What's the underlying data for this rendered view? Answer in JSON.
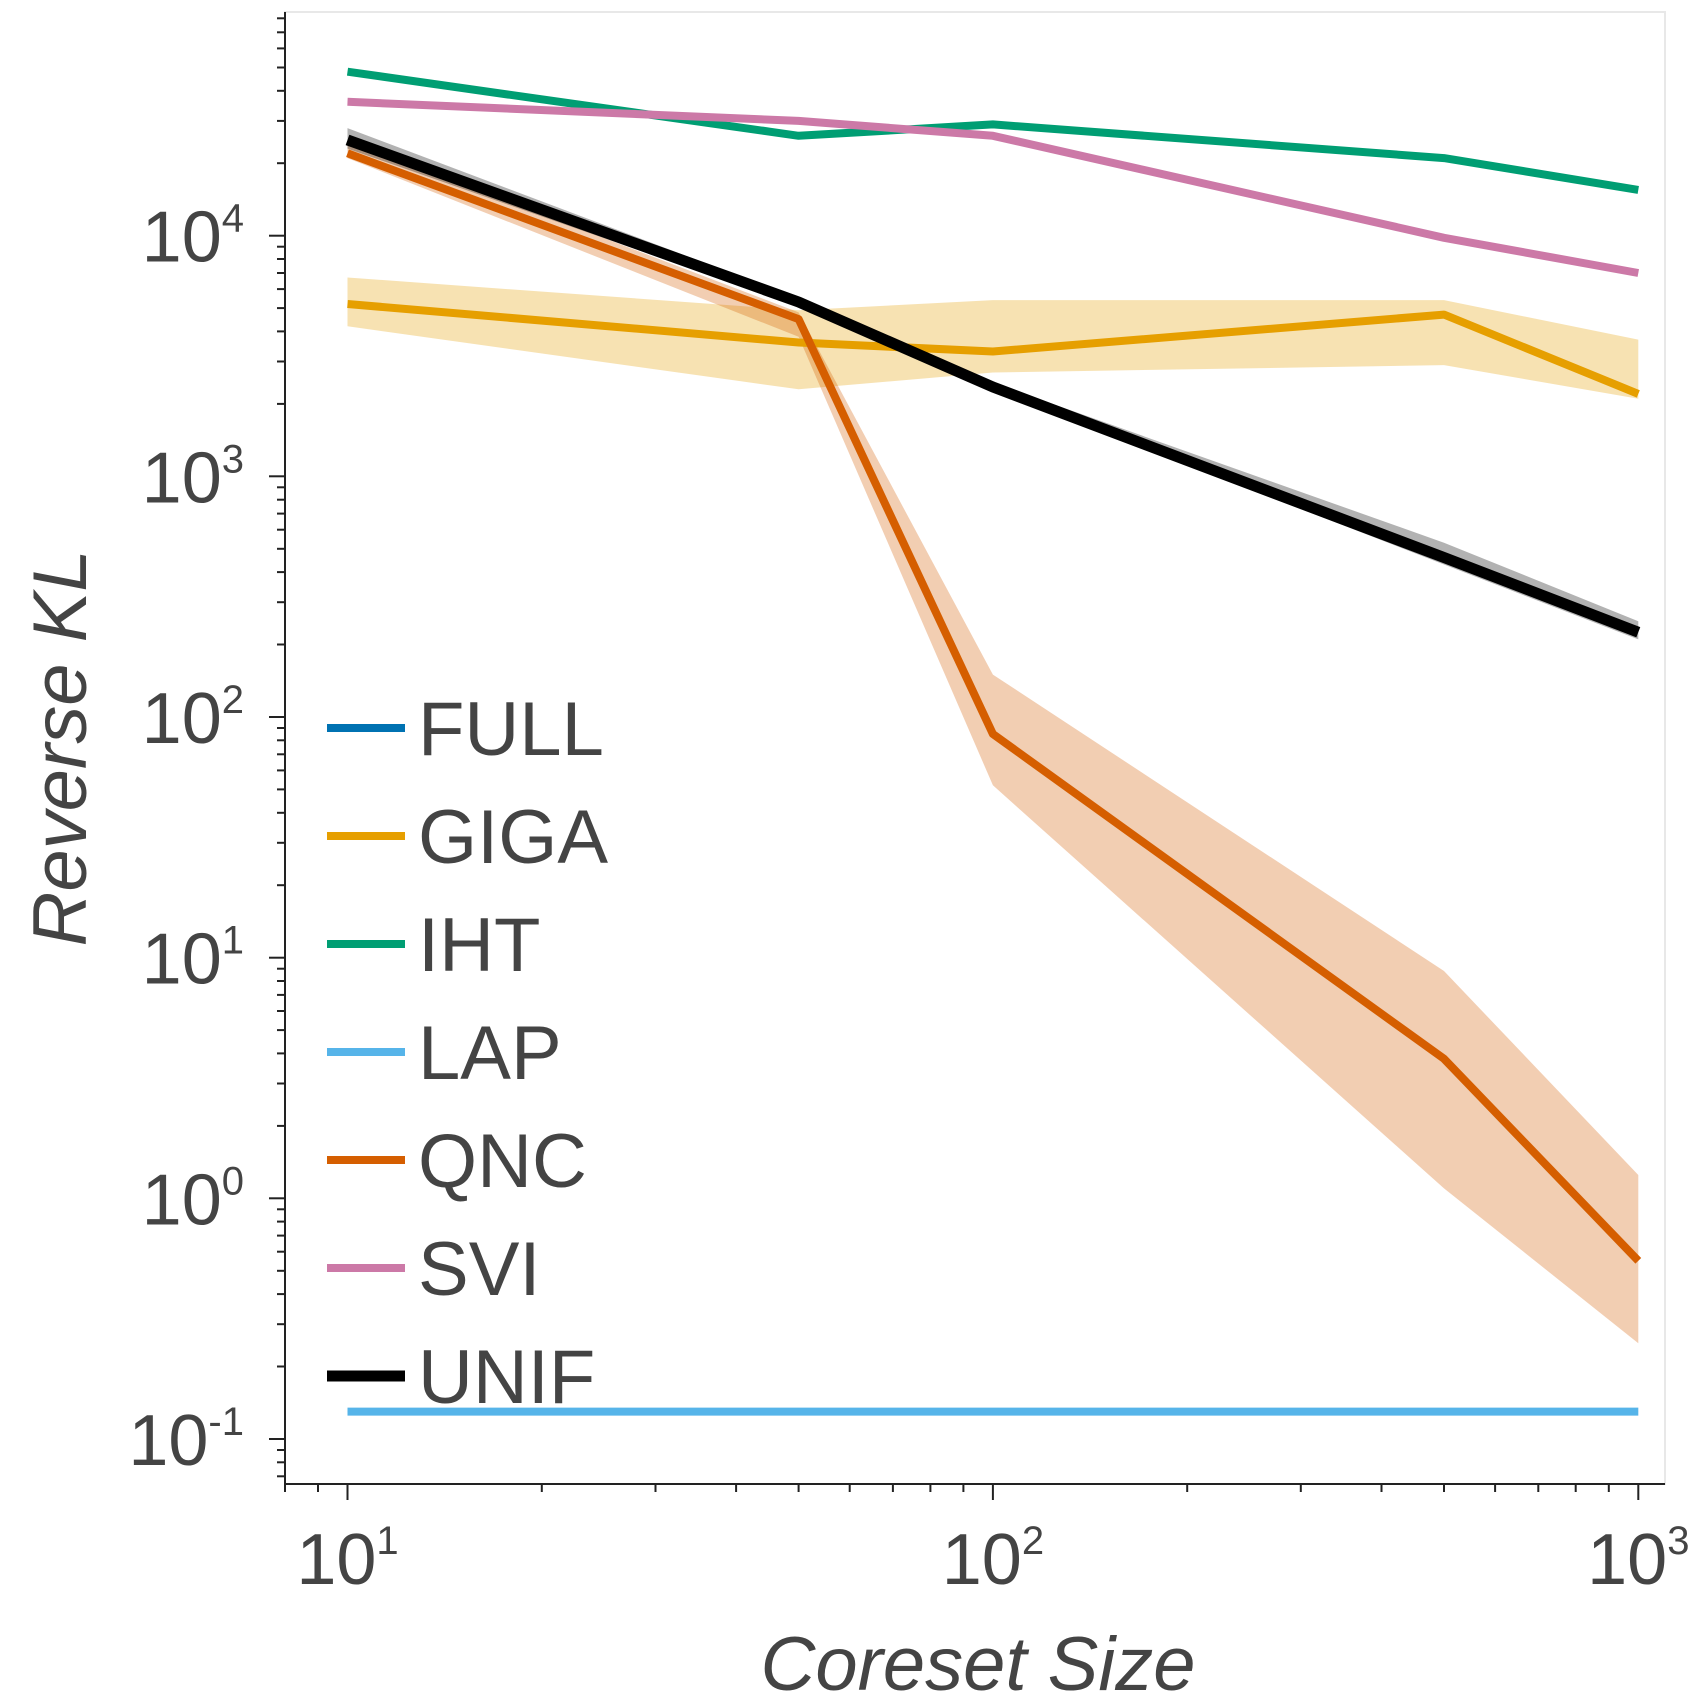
{
  "chart_data": {
    "type": "line",
    "title": "",
    "xlabel": "Coreset Size",
    "ylabel": "Reverse KL",
    "xscale": "log",
    "yscale": "log",
    "xlim": [
      8,
      1100
    ],
    "ylim": [
      0.065,
      85000
    ],
    "x_ticks": [
      {
        "value": 10,
        "base": "10",
        "exp": "1"
      },
      {
        "value": 100,
        "base": "10",
        "exp": "2"
      },
      {
        "value": 1000,
        "base": "10",
        "exp": "3"
      }
    ],
    "y_ticks": [
      {
        "value": 0.1,
        "base": "10",
        "exp": "-1"
      },
      {
        "value": 1,
        "base": "10",
        "exp": "0"
      },
      {
        "value": 10,
        "base": "10",
        "exp": "1"
      },
      {
        "value": 100,
        "base": "10",
        "exp": "2"
      },
      {
        "value": 1000,
        "base": "10",
        "exp": "3"
      },
      {
        "value": 10000,
        "base": "10",
        "exp": "4"
      }
    ],
    "legend_position": "center-left",
    "series": [
      {
        "name": "FULL",
        "color": "#0072b2",
        "x": [],
        "values": []
      },
      {
        "name": "GIGA",
        "color": "#e69f00",
        "x": [
          10,
          50,
          100,
          500,
          1000
        ],
        "values": [
          5200,
          3600,
          3300,
          4700,
          2200
        ],
        "lower": [
          4200,
          2300,
          2700,
          2900,
          2100
        ],
        "upper": [
          6700,
          4900,
          5400,
          5400,
          3700
        ]
      },
      {
        "name": "IHT",
        "color": "#009e73",
        "x": [
          10,
          50,
          100,
          500,
          1000
        ],
        "values": [
          48000,
          26000,
          29000,
          21000,
          15500
        ]
      },
      {
        "name": "LAP",
        "color": "#56b4e9",
        "x": [
          10,
          1000
        ],
        "values": [
          0.13,
          0.13
        ]
      },
      {
        "name": "QNC",
        "color": "#d55e00",
        "x": [
          10,
          50,
          100,
          500,
          1000
        ],
        "values": [
          22000,
          4500,
          85,
          3.8,
          0.55
        ],
        "lower": [
          21000,
          3800,
          52,
          1.1,
          0.25
        ],
        "upper": [
          25000,
          4800,
          150,
          8.8,
          1.25
        ]
      },
      {
        "name": "SVI",
        "color": "#cc79a7",
        "x": [
          10,
          50,
          100,
          500,
          1000
        ],
        "values": [
          36000,
          30000,
          26000,
          9800,
          7000
        ]
      },
      {
        "name": "UNIF",
        "color": "#000000",
        "x": [
          10,
          50,
          100,
          500,
          1000
        ],
        "values": [
          25000,
          5300,
          2350,
          460,
          225
        ],
        "lower": [
          23000,
          5100,
          2300,
          430,
          210
        ],
        "upper": [
          28000,
          5500,
          2450,
          530,
          250
        ]
      }
    ]
  }
}
